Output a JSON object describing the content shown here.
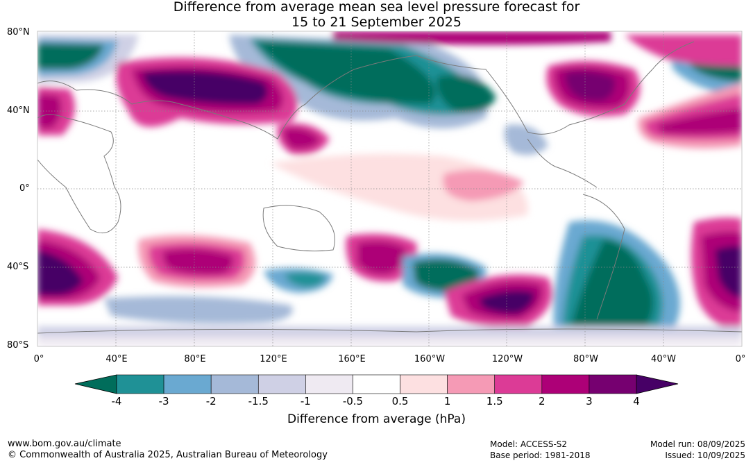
{
  "title": {
    "line1": "Difference from average mean sea level pressure forecast for",
    "line2": "15 to 21 September 2025"
  },
  "axes": {
    "lat_labels": [
      "80°N",
      "40°N",
      "0°",
      "40°S",
      "80°S"
    ],
    "lon_labels": [
      "0°",
      "40°E",
      "80°E",
      "120°E",
      "160°E",
      "160°W",
      "120°W",
      "80°W",
      "40°W",
      "0°"
    ]
  },
  "colorbar": {
    "ticks": [
      "-4",
      "-3",
      "-2",
      "-1.5",
      "-1",
      "-0.5",
      "0.5",
      "1",
      "1.5",
      "2",
      "3",
      "4"
    ],
    "colors": [
      "#1f9196",
      "#6aa9d1",
      "#a5b9d8",
      "#cfd0e5",
      "#efeaf2",
      "#ffffff",
      "#fde0e1",
      "#f59ab5",
      "#dc3b96",
      "#ad0077",
      "#760070"
    ],
    "low_extend_color": "#006d5b",
    "high_extend_color": "#470066",
    "label": "Difference from average (hPa)"
  },
  "footer": {
    "url": "www.bom.gov.au/climate",
    "copyright": "© Commonwealth of Australia 2025, Australian Bureau of Meteorology",
    "model": "Model: ACCESS-S2",
    "base_period": "Base period: 1981-2018",
    "model_run": "Model run: 08/09/2025",
    "issued": "Issued: 10/09/2025"
  }
}
